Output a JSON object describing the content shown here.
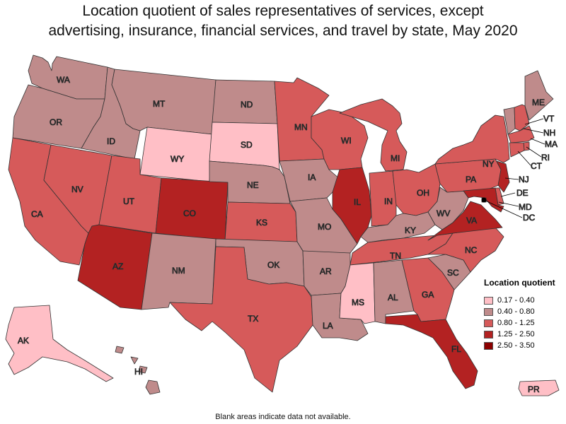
{
  "title_line1": "Location quotient of sales representatives of services, except",
  "title_line2": "advertising, insurance, financial services, and travel by state, May 2020",
  "footnote": "Blank areas indicate data not available.",
  "colors": {
    "c1": "#ffbfc6",
    "c2": "#bf8b8b",
    "c3": "#d65a5a",
    "c4": "#b32222",
    "c5": "#8b0000",
    "border": "#333333"
  },
  "legend": {
    "title": "Location quotient",
    "items": [
      {
        "label": "0.17 - 0.40",
        "color_key": "c1"
      },
      {
        "label": "0.40 - 0.80",
        "color_key": "c2"
      },
      {
        "label": "0.80 - 1.25",
        "color_key": "c3"
      },
      {
        "label": "1.25 - 2.50",
        "color_key": "c4"
      },
      {
        "label": "2.50 - 3.50",
        "color_key": "c5"
      }
    ]
  },
  "state_labels": {
    "WA": "WA",
    "OR": "OR",
    "CA": "CA",
    "ID": "ID",
    "NV": "NV",
    "MT": "MT",
    "WY": "WY",
    "UT": "UT",
    "AZ": "AZ",
    "CO": "CO",
    "NM": "NM",
    "ND": "ND",
    "SD": "SD",
    "NE": "NE",
    "KS": "KS",
    "OK": "OK",
    "TX": "TX",
    "MN": "MN",
    "IA": "IA",
    "MO": "MO",
    "AR": "AR",
    "LA": "LA",
    "WI": "WI",
    "IL": "IL",
    "MI": "MI",
    "IN": "IN",
    "OH": "OH",
    "KY": "KY",
    "TN": "TN",
    "MS": "MS",
    "AL": "AL",
    "GA": "GA",
    "FL": "FL",
    "SC": "SC",
    "NC": "NC",
    "VA": "VA",
    "WV": "WV",
    "PA": "PA",
    "NY": "NY",
    "ME": "ME",
    "VT": "VT",
    "NH": "NH",
    "MA": "MA",
    "RI": "RI",
    "CT": "CT",
    "NJ": "NJ",
    "DE": "DE",
    "MD": "MD",
    "DC": "DC",
    "AK": "AK",
    "HI": "HI",
    "PR": "PR"
  },
  "state_classes": {
    "WA": "c2",
    "OR": "c2",
    "CA": "c3",
    "ID": "c2",
    "NV": "c3",
    "MT": "c2",
    "WY": "c1",
    "UT": "c3",
    "AZ": "c4",
    "CO": "c4",
    "NM": "c2",
    "ND": "c2",
    "SD": "c1",
    "NE": "c2",
    "KS": "c3",
    "OK": "c2",
    "TX": "c3",
    "MN": "c3",
    "IA": "c2",
    "MO": "c2",
    "AR": "c2",
    "LA": "c2",
    "WI": "c3",
    "IL": "c4",
    "MI": "c3",
    "IN": "c3",
    "OH": "c3",
    "KY": "c2",
    "TN": "c3",
    "MS": "c1",
    "AL": "c2",
    "GA": "c3",
    "FL": "c4",
    "SC": "c2",
    "NC": "c3",
    "VA": "c4",
    "WV": "c2",
    "PA": "c3",
    "NY": "c3",
    "ME": "c2",
    "VT": "c2",
    "NH": "c3",
    "MA": "c3",
    "RI": "c3",
    "CT": "c3",
    "NJ": "c4",
    "DE": "c3",
    "MD": "c4",
    "DC": "c5",
    "AK": "c1",
    "HI": "c2",
    "PR": "c1"
  }
}
